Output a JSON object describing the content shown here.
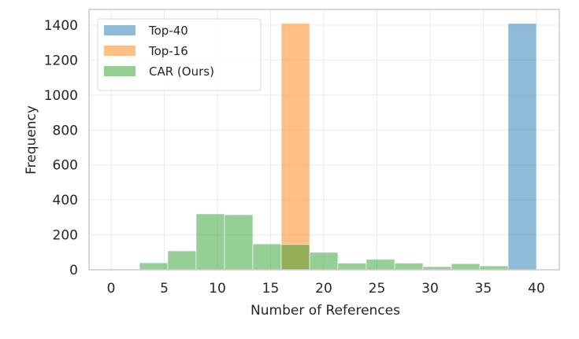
{
  "chart_data": {
    "type": "bar",
    "title": "",
    "xlabel": "Number of References",
    "ylabel": "Frequency",
    "xlim": [
      -2,
      41.5
    ],
    "ylim": [
      0,
      1480
    ],
    "xticks": [
      0,
      5,
      10,
      15,
      20,
      25,
      30,
      35,
      40
    ],
    "yticks": [
      0,
      200,
      400,
      600,
      800,
      1000,
      1200,
      1400
    ],
    "grid": true,
    "legend_position": "upper left",
    "bin_width": 2.667,
    "series": [
      {
        "name": "Top-40",
        "color": "#1f77b4",
        "alpha": 0.5,
        "bins": [
          {
            "x0": 37.33,
            "x1": 40.0,
            "value": 1410
          }
        ]
      },
      {
        "name": "Top-16",
        "color": "#ff7f0e",
        "alpha": 0.5,
        "bins": [
          {
            "x0": 16.0,
            "x1": 18.67,
            "value": 1410
          }
        ]
      },
      {
        "name": "CAR (Ours)",
        "color": "#2ca02c",
        "alpha": 0.5,
        "bins": [
          {
            "x0": 2.67,
            "x1": 5.33,
            "value": 40
          },
          {
            "x0": 5.33,
            "x1": 8.0,
            "value": 108
          },
          {
            "x0": 8.0,
            "x1": 10.67,
            "value": 320
          },
          {
            "x0": 10.67,
            "x1": 13.33,
            "value": 315
          },
          {
            "x0": 13.33,
            "x1": 16.0,
            "value": 148
          },
          {
            "x0": 16.0,
            "x1": 18.67,
            "value": 145
          },
          {
            "x0": 18.67,
            "x1": 21.33,
            "value": 100
          },
          {
            "x0": 21.33,
            "x1": 24.0,
            "value": 38
          },
          {
            "x0": 24.0,
            "x1": 26.67,
            "value": 60
          },
          {
            "x0": 26.67,
            "x1": 29.33,
            "value": 38
          },
          {
            "x0": 29.33,
            "x1": 32.0,
            "value": 18
          },
          {
            "x0": 32.0,
            "x1": 34.67,
            "value": 35
          },
          {
            "x0": 34.67,
            "x1": 37.33,
            "value": 22
          }
        ]
      }
    ]
  },
  "legend": {
    "items": [
      {
        "label": "Top-40",
        "color": "#1f77b4"
      },
      {
        "label": "Top-16",
        "color": "#ff7f0e"
      },
      {
        "label": "CAR (Ours)",
        "color": "#2ca02c"
      }
    ]
  }
}
